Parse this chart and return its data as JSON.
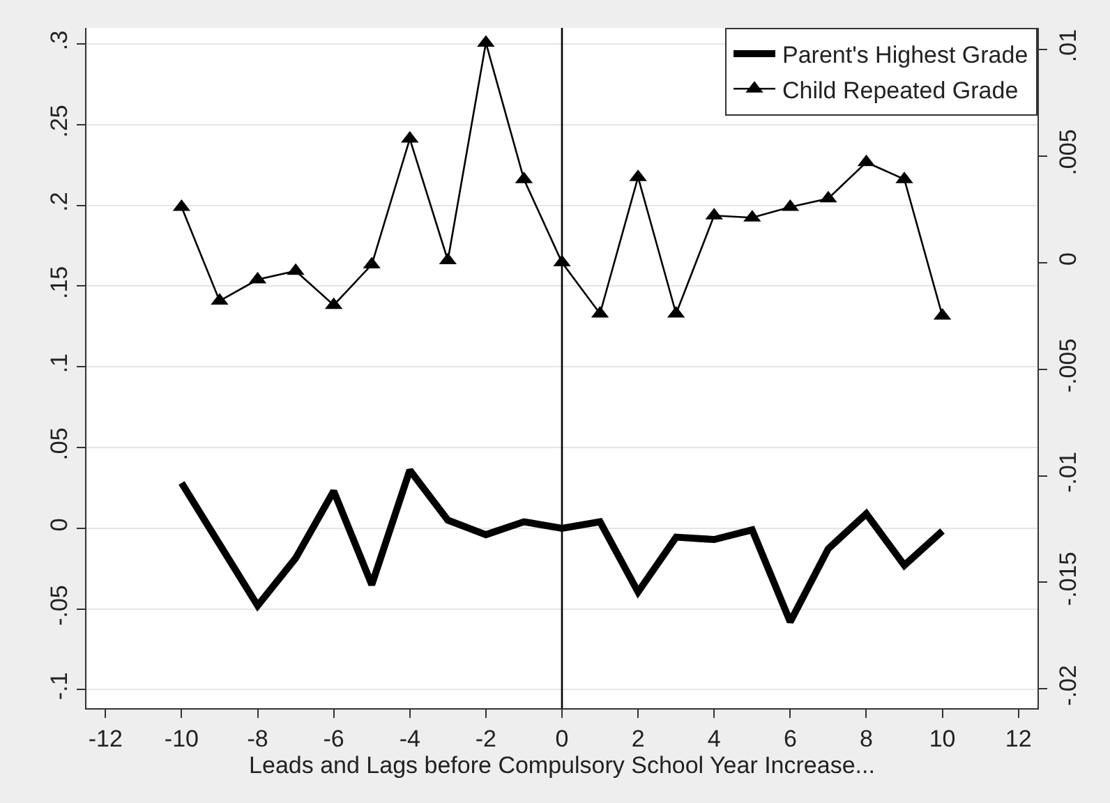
{
  "chart_data": {
    "type": "line",
    "xlabel": "Leads and Lags before Compulsory School Year Increase...",
    "x": [
      -10,
      -9,
      -8,
      -7,
      -6,
      -5,
      -4,
      -3,
      -2,
      -1,
      0,
      1,
      2,
      3,
      4,
      5,
      6,
      7,
      8,
      9,
      10
    ],
    "series": [
      {
        "name": "Parent's Highest Grade",
        "color": "#000000",
        "marker": "none",
        "values": [
          0.028,
          -0.01,
          -0.048,
          -0.0185,
          0.023,
          -0.035,
          0.036,
          0.005,
          -0.004,
          0.004,
          0.0,
          0.004,
          -0.0395,
          -0.0055,
          -0.007,
          -0.001,
          -0.058,
          -0.0127,
          0.009,
          -0.023,
          -0.0017
        ]
      },
      {
        "name": "Child Repeated Grade",
        "color": "#000000",
        "marker": "triangle",
        "axis": "y2",
        "values": [
          0.0026,
          -0.0018,
          -0.0008,
          -0.0004,
          -0.002,
          -0.0001,
          0.0058,
          0.0001,
          0.0103,
          0.0039,
          0.0,
          -0.0024,
          0.004,
          -0.0024,
          0.0022,
          0.0021,
          0.0026,
          0.003,
          0.0047,
          0.0039,
          -0.0025
        ]
      }
    ],
    "xlim": [
      -12.5,
      12.5
    ],
    "xticks": [
      -12,
      -10,
      -8,
      -6,
      -4,
      -2,
      0,
      2,
      4,
      6,
      8,
      10,
      12
    ],
    "ylim": [
      -0.1115,
      0.31
    ],
    "yticks": [
      {
        "value": -0.1,
        "label": "-.1"
      },
      {
        "value": -0.05,
        "label": "-.05"
      },
      0,
      {
        "value": 0.05,
        "label": ".05"
      },
      {
        "value": 0.1,
        "label": ".1"
      },
      {
        "value": 0.15,
        "label": ".15"
      },
      {
        "value": 0.2,
        "label": ".2"
      },
      {
        "value": 0.25,
        "label": ".25"
      },
      {
        "value": 0.3,
        "label": ".3"
      }
    ],
    "y2lim": [
      -0.0209,
      0.011
    ],
    "y2ticks": [
      {
        "value": -0.02,
        "label": "-.02"
      },
      {
        "value": -0.015,
        "label": "-.015"
      },
      {
        "value": -0.01,
        "label": "-.01"
      },
      {
        "value": -0.005,
        "label": "-.005"
      },
      0,
      {
        "value": 0.005,
        "label": ".005"
      },
      {
        "value": 0.01,
        "label": ".01"
      }
    ],
    "ref_lines": [
      {
        "axis": "x",
        "value": 0,
        "color": "#000000"
      }
    ],
    "grid": "y",
    "legend": "top right"
  }
}
